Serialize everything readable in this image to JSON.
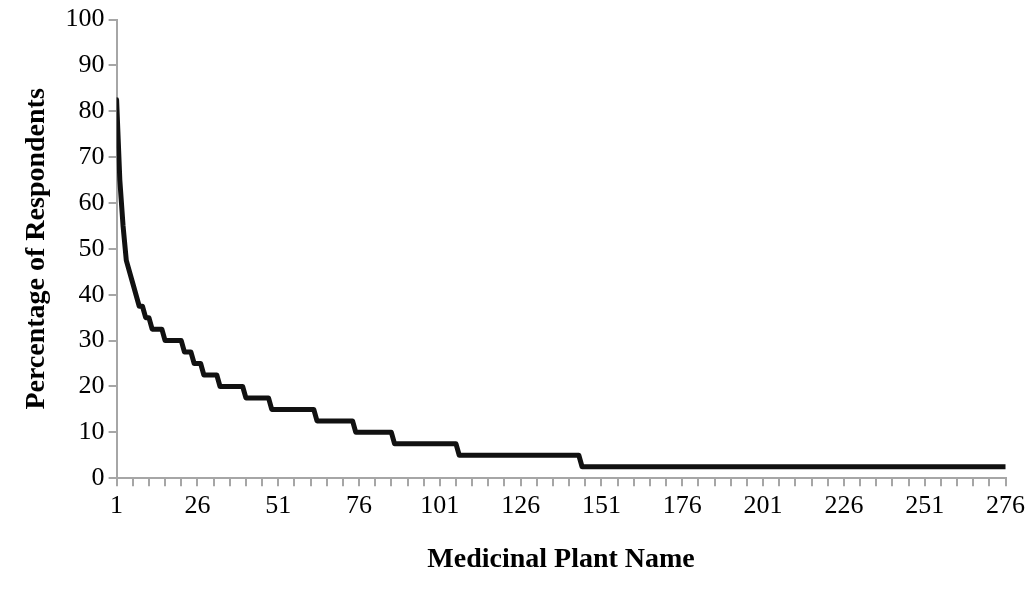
{
  "chart_data": {
    "type": "line",
    "xlabel": "Medicinal Plant Name",
    "ylabel": "Percentage of Respondents",
    "x": [
      1,
      2,
      3,
      4,
      6,
      8,
      9,
      10,
      11,
      12,
      15,
      16,
      21,
      22,
      24,
      25,
      27,
      28,
      32,
      33,
      40,
      41,
      48,
      49,
      62,
      63,
      74,
      75,
      86,
      87,
      106,
      107,
      144,
      145,
      276
    ],
    "series": [
      {
        "color": "#111111",
        "values": [
          82.5,
          65,
          55,
          47.5,
          42.5,
          37.5,
          37.5,
          35,
          35,
          32.5,
          32.5,
          30,
          30,
          27.5,
          27.5,
          25,
          25,
          22.5,
          22.5,
          20,
          20,
          17.5,
          17.5,
          15,
          15,
          12.5,
          12.5,
          10,
          10,
          7.5,
          7.5,
          5,
          5,
          2.5,
          2.5
        ]
      }
    ],
    "xlim": [
      1,
      276
    ],
    "xticks": [
      1,
      {
        "value": 6,
        "label": null
      },
      {
        "value": 11,
        "label": null
      },
      {
        "value": 16,
        "label": null
      },
      {
        "value": 21,
        "label": null
      },
      26,
      {
        "value": 31,
        "label": null
      },
      {
        "value": 36,
        "label": null
      },
      {
        "value": 41,
        "label": null
      },
      {
        "value": 46,
        "label": null
      },
      51,
      {
        "value": 56,
        "label": null
      },
      {
        "value": 61,
        "label": null
      },
      {
        "value": 66,
        "label": null
      },
      {
        "value": 71,
        "label": null
      },
      76,
      {
        "value": 81,
        "label": null
      },
      {
        "value": 86,
        "label": null
      },
      {
        "value": 91,
        "label": null
      },
      {
        "value": 96,
        "label": null
      },
      101,
      {
        "value": 106,
        "label": null
      },
      {
        "value": 111,
        "label": null
      },
      {
        "value": 116,
        "label": null
      },
      {
        "value": 121,
        "label": null
      },
      126,
      {
        "value": 131,
        "label": null
      },
      {
        "value": 136,
        "label": null
      },
      {
        "value": 141,
        "label": null
      },
      {
        "value": 146,
        "label": null
      },
      151,
      {
        "value": 156,
        "label": null
      },
      {
        "value": 161,
        "label": null
      },
      {
        "value": 166,
        "label": null
      },
      {
        "value": 171,
        "label": null
      },
      176,
      {
        "value": 181,
        "label": null
      },
      {
        "value": 186,
        "label": null
      },
      {
        "value": 191,
        "label": null
      },
      {
        "value": 196,
        "label": null
      },
      201,
      {
        "value": 206,
        "label": null
      },
      {
        "value": 211,
        "label": null
      },
      {
        "value": 216,
        "label": null
      },
      {
        "value": 221,
        "label": null
      },
      226,
      {
        "value": 231,
        "label": null
      },
      {
        "value": 236,
        "label": null
      },
      {
        "value": 241,
        "label": null
      },
      {
        "value": 246,
        "label": null
      },
      251,
      {
        "value": 256,
        "label": null
      },
      {
        "value": 261,
        "label": null
      },
      {
        "value": 266,
        "label": null
      },
      {
        "value": 271,
        "label": null
      },
      276
    ],
    "ylim": [
      0,
      100
    ],
    "yticks": [
      0,
      10,
      20,
      30,
      40,
      50,
      60,
      70,
      80,
      90,
      100
    ],
    "grid": false,
    "legend": false,
    "marker": "none",
    "line_style": "solid"
  }
}
